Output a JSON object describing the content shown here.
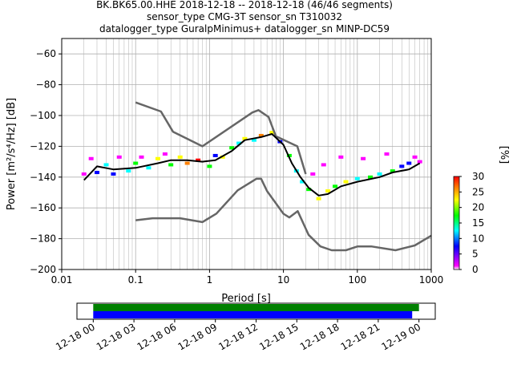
{
  "chart_data": [
    {
      "type": "heatmap",
      "title_lines": [
        "BK.BK65.00.HHE   2018-12-18 -- 2018-12-18  (46/46 segments)",
        "sensor_type CMG-3T sensor_sn T310032",
        "datalogger_type GuralpMinimus+ datalogger_sn MINP-DC59"
      ],
      "xlabel": "Period [s]",
      "ylabel": "Power [m²/s⁴/Hz] [dB]",
      "xscale": "log",
      "xlim": [
        0.01,
        1000
      ],
      "ylim": [
        -200,
        -50
      ],
      "grid": true,
      "x_ticks": [
        {
          "value": 0.01,
          "label": "0.01"
        },
        {
          "value": 0.1,
          "label": "0.1"
        },
        {
          "value": 1,
          "label": "1"
        },
        {
          "value": 10,
          "label": "10"
        },
        {
          "value": 100,
          "label": "100"
        },
        {
          "value": 1000,
          "label": "1000"
        }
      ],
      "y_ticks": [
        {
          "value": -60,
          "label": "−60"
        },
        {
          "value": -80,
          "label": "−80"
        },
        {
          "value": -100,
          "label": "−100"
        },
        {
          "value": -120,
          "label": "−120"
        },
        {
          "value": -140,
          "label": "−140"
        },
        {
          "value": -160,
          "label": "−160"
        },
        {
          "value": -180,
          "label": "−180"
        },
        {
          "value": -200,
          "label": "−200"
        }
      ],
      "colorbar": {
        "label": "[%]",
        "range": [
          0,
          30
        ],
        "ticks": [
          {
            "value": 0,
            "label": "0"
          },
          {
            "value": 5,
            "label": "5"
          },
          {
            "value": 10,
            "label": "10"
          },
          {
            "value": 15,
            "label": "15"
          },
          {
            "value": 20,
            "label": "20"
          },
          {
            "value": 25,
            "label": "25"
          },
          {
            "value": 30,
            "label": "30"
          }
        ],
        "colors": [
          "#ffffff",
          "#ff00ff",
          "#0000ff",
          "#00ffff",
          "#00ff00",
          "#ffff00",
          "#ff8000",
          "#ff0000"
        ]
      },
      "series": [
        {
          "key": "nhnm",
          "color": "#666666",
          "x": [
            0.1,
            0.22,
            0.32,
            0.8,
            3.8,
            4.6,
            6.3,
            7.9,
            15.4,
            20
          ],
          "y": [
            -91.5,
            -97.4,
            -110.5,
            -120,
            -98,
            -96.5,
            -101,
            -113.5,
            -120,
            -138
          ]
        },
        {
          "key": "nlnm",
          "color": "#666666",
          "x": [
            0.1,
            0.17,
            0.4,
            0.8,
            1.24,
            2.4,
            4.3,
            5,
            6,
            10,
            12,
            15.6,
            21.9,
            31.6,
            45,
            70,
            101,
            154,
            328,
            600,
            1000
          ],
          "y": [
            -168,
            -166.7,
            -166.7,
            -169.2,
            -163.7,
            -148.6,
            -141.1,
            -141.1,
            -149,
            -163.8,
            -166.2,
            -162.1,
            -177.5,
            -185,
            -187.5,
            -187.5,
            -185,
            -185,
            -187.5,
            -184.4,
            -178
          ]
        },
        {
          "key": "median",
          "color": "#000000",
          "x": [
            0.02,
            0.03,
            0.05,
            0.1,
            0.2,
            0.3,
            0.5,
            0.8,
            1.2,
            2,
            3,
            5,
            7,
            10,
            13,
            17,
            22,
            30,
            40,
            60,
            100,
            200,
            300,
            500,
            700
          ],
          "y": [
            -142,
            -133,
            -135,
            -134,
            -131,
            -129,
            -129,
            -130,
            -129,
            -123,
            -116,
            -114,
            -112,
            -119,
            -131,
            -140,
            -147,
            -152,
            -151,
            -146,
            -143,
            -140,
            -137,
            -135,
            -131
          ]
        }
      ],
      "distribution": [
        {
          "x": 0.02,
          "y": -138,
          "pct": 6
        },
        {
          "x": 0.025,
          "y": -128,
          "pct": 2
        },
        {
          "x": 0.03,
          "y": -137,
          "pct": 10
        },
        {
          "x": 0.04,
          "y": -132,
          "pct": 12
        },
        {
          "x": 0.05,
          "y": -138,
          "pct": 8
        },
        {
          "x": 0.06,
          "y": -127,
          "pct": 2
        },
        {
          "x": 0.08,
          "y": -136,
          "pct": 14
        },
        {
          "x": 0.1,
          "y": -131,
          "pct": 16
        },
        {
          "x": 0.12,
          "y": -127,
          "pct": 3
        },
        {
          "x": 0.15,
          "y": -134,
          "pct": 12
        },
        {
          "x": 0.2,
          "y": -128,
          "pct": 20
        },
        {
          "x": 0.25,
          "y": -125,
          "pct": 4
        },
        {
          "x": 0.3,
          "y": -132,
          "pct": 18
        },
        {
          "x": 0.4,
          "y": -127,
          "pct": 22
        },
        {
          "x": 0.5,
          "y": -131,
          "pct": 25
        },
        {
          "x": 0.7,
          "y": -129,
          "pct": 28
        },
        {
          "x": 1.0,
          "y": -133,
          "pct": 18
        },
        {
          "x": 1.2,
          "y": -126,
          "pct": 8
        },
        {
          "x": 1.5,
          "y": -127,
          "pct": 20
        },
        {
          "x": 2.0,
          "y": -121,
          "pct": 16
        },
        {
          "x": 2.5,
          "y": -118,
          "pct": 12
        },
        {
          "x": 3.0,
          "y": -115,
          "pct": 22
        },
        {
          "x": 4.0,
          "y": -116,
          "pct": 14
        },
        {
          "x": 5.0,
          "y": -113,
          "pct": 24
        },
        {
          "x": 7.0,
          "y": -111,
          "pct": 20
        },
        {
          "x": 9.0,
          "y": -117,
          "pct": 10
        },
        {
          "x": 12,
          "y": -126,
          "pct": 16
        },
        {
          "x": 15,
          "y": -136,
          "pct": 12
        },
        {
          "x": 18,
          "y": -143,
          "pct": 14
        },
        {
          "x": 22,
          "y": -148,
          "pct": 18
        },
        {
          "x": 25,
          "y": -138,
          "pct": 3
        },
        {
          "x": 30,
          "y": -154,
          "pct": 20
        },
        {
          "x": 35,
          "y": -132,
          "pct": 2
        },
        {
          "x": 40,
          "y": -149,
          "pct": 22
        },
        {
          "x": 50,
          "y": -146,
          "pct": 16
        },
        {
          "x": 60,
          "y": -127,
          "pct": 2
        },
        {
          "x": 70,
          "y": -143,
          "pct": 20
        },
        {
          "x": 100,
          "y": -141,
          "pct": 14
        },
        {
          "x": 120,
          "y": -128,
          "pct": 3
        },
        {
          "x": 150,
          "y": -140,
          "pct": 18
        },
        {
          "x": 200,
          "y": -138,
          "pct": 12
        },
        {
          "x": 250,
          "y": -125,
          "pct": 2
        },
        {
          "x": 300,
          "y": -136,
          "pct": 16
        },
        {
          "x": 400,
          "y": -133,
          "pct": 10
        },
        {
          "x": 500,
          "y": -131,
          "pct": 8
        },
        {
          "x": 600,
          "y": -127,
          "pct": 4
        },
        {
          "x": 700,
          "y": -130,
          "pct": 6
        }
      ]
    },
    {
      "type": "timeline",
      "tick_labels": [
        "12-18 00",
        "12-18 03",
        "12-18 06",
        "12-18 09",
        "12-18 12",
        "12-18 15",
        "12-18 18",
        "12-18 21",
        "12-19 00"
      ],
      "range_hours": [
        -1.2,
        25.2
      ],
      "bars": [
        {
          "key": "data-coverage",
          "color": "#008000",
          "start_hours": 0,
          "end_hours": 24.0
        },
        {
          "key": "psd-coverage",
          "color": "#0000ff",
          "start_hours": 0,
          "end_hours": 23.5
        }
      ]
    }
  ]
}
